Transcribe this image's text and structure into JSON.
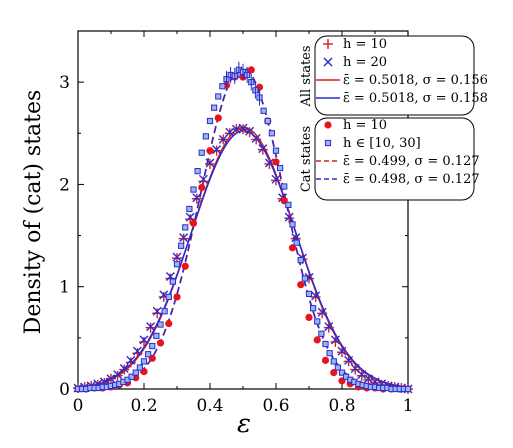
{
  "chart_data": {
    "type": "line",
    "xlabel": "ε",
    "ylabel": "Density of (cat) states",
    "xlim": [
      0,
      1
    ],
    "ylim": [
      0,
      3.5
    ],
    "xticks": [
      "0",
      "0.2",
      "0.4",
      "0.6",
      "0.8",
      "1"
    ],
    "yticks": [
      "0",
      "1",
      "2",
      "3"
    ],
    "legend_groups": [
      "All states",
      "Cat states"
    ],
    "series": [
      {
        "name": "h = 10",
        "group": "All states",
        "style": "plus",
        "color": "#d62020",
        "x": [
          0.0,
          0.02,
          0.04,
          0.06,
          0.08,
          0.1,
          0.12,
          0.14,
          0.16,
          0.18,
          0.2,
          0.22,
          0.24,
          0.26,
          0.28,
          0.3,
          0.32,
          0.34,
          0.36,
          0.38,
          0.4,
          0.42,
          0.44,
          0.46,
          0.48,
          0.5,
          0.52,
          0.54,
          0.56,
          0.58,
          0.6,
          0.62,
          0.64,
          0.66,
          0.68,
          0.7,
          0.72,
          0.74,
          0.76,
          0.78,
          0.8,
          0.82,
          0.84,
          0.86,
          0.88,
          0.9,
          0.92,
          0.94,
          0.96,
          0.98,
          1.0
        ],
        "y": [
          0.01,
          0.02,
          0.03,
          0.04,
          0.06,
          0.1,
          0.13,
          0.19,
          0.26,
          0.35,
          0.46,
          0.6,
          0.74,
          0.9,
          1.08,
          1.28,
          1.47,
          1.66,
          1.86,
          2.03,
          2.2,
          2.33,
          2.44,
          2.5,
          2.54,
          2.54,
          2.51,
          2.44,
          2.34,
          2.2,
          2.04,
          1.86,
          1.67,
          1.47,
          1.27,
          1.08,
          0.9,
          0.74,
          0.6,
          0.46,
          0.36,
          0.27,
          0.19,
          0.13,
          0.09,
          0.06,
          0.04,
          0.03,
          0.02,
          0.01,
          0.0
        ]
      },
      {
        "name": "h = 20",
        "group": "All states",
        "style": "cross",
        "color": "#2a2ad0",
        "x": [
          0.0,
          0.02,
          0.04,
          0.06,
          0.08,
          0.1,
          0.12,
          0.14,
          0.16,
          0.18,
          0.2,
          0.22,
          0.24,
          0.26,
          0.28,
          0.3,
          0.32,
          0.34,
          0.36,
          0.38,
          0.4,
          0.42,
          0.44,
          0.46,
          0.48,
          0.5,
          0.52,
          0.54,
          0.56,
          0.58,
          0.6,
          0.62,
          0.64,
          0.66,
          0.68,
          0.7,
          0.72,
          0.74,
          0.76,
          0.78,
          0.8,
          0.82,
          0.84,
          0.86,
          0.88,
          0.9,
          0.92,
          0.94,
          0.96,
          0.98,
          1.0
        ],
        "y": [
          0.01,
          0.02,
          0.03,
          0.05,
          0.07,
          0.1,
          0.14,
          0.2,
          0.28,
          0.37,
          0.48,
          0.61,
          0.76,
          0.92,
          1.1,
          1.29,
          1.48,
          1.68,
          1.87,
          2.05,
          2.21,
          2.34,
          2.44,
          2.51,
          2.54,
          2.55,
          2.52,
          2.45,
          2.35,
          2.21,
          2.05,
          1.87,
          1.68,
          1.48,
          1.28,
          1.09,
          0.91,
          0.75,
          0.61,
          0.48,
          0.37,
          0.28,
          0.2,
          0.14,
          0.1,
          0.07,
          0.05,
          0.03,
          0.02,
          0.01,
          0.0
        ]
      },
      {
        "name": "ε̄ = 0.5018, σ = 0.156",
        "group": "All states",
        "style": "solid",
        "color": "#d62020",
        "mean": 0.5018,
        "sigma": 0.156
      },
      {
        "name": "ε̄ = 0.5018, σ = 0.158",
        "group": "All states",
        "style": "solid",
        "color": "#2a2ad0",
        "mean": 0.5018,
        "sigma": 0.158
      },
      {
        "name": "h = 10",
        "group": "Cat states",
        "style": "dot",
        "color": "#e8141c",
        "x": [
          0.0,
          0.025,
          0.05,
          0.075,
          0.1,
          0.125,
          0.15,
          0.175,
          0.2,
          0.225,
          0.25,
          0.275,
          0.3,
          0.325,
          0.35,
          0.375,
          0.4,
          0.425,
          0.45,
          0.475,
          0.5,
          0.525,
          0.55,
          0.575,
          0.6,
          0.625,
          0.65,
          0.675,
          0.7,
          0.725,
          0.75,
          0.775,
          0.8,
          0.825,
          0.85,
          0.875,
          0.9,
          0.925,
          0.95,
          0.975,
          1.0
        ],
        "y": [
          0.0,
          0.0,
          0.01,
          0.01,
          0.02,
          0.04,
          0.06,
          0.11,
          0.17,
          0.3,
          0.45,
          0.64,
          0.9,
          1.2,
          1.62,
          1.97,
          2.33,
          2.65,
          2.97,
          3.05,
          3.05,
          3.12,
          2.95,
          2.62,
          2.22,
          1.84,
          1.38,
          1.02,
          0.7,
          0.48,
          0.28,
          0.16,
          0.08,
          0.05,
          0.02,
          0.01,
          0.01,
          0.0,
          0.0,
          0.0,
          0.0
        ]
      },
      {
        "name": "h ∈ [10, 30]",
        "group": "Cat states",
        "style": "square",
        "color": "#2a2ad0",
        "x": [
          0.0,
          0.0125,
          0.025,
          0.0375,
          0.05,
          0.0625,
          0.075,
          0.0875,
          0.1,
          0.1125,
          0.125,
          0.1375,
          0.15,
          0.1625,
          0.175,
          0.1875,
          0.2,
          0.2125,
          0.225,
          0.2375,
          0.25,
          0.2625,
          0.275,
          0.2875,
          0.3,
          0.3125,
          0.325,
          0.3375,
          0.35,
          0.3625,
          0.375,
          0.3875,
          0.4,
          0.4125,
          0.425,
          0.4375,
          0.45,
          0.4625,
          0.475,
          0.4875,
          0.5,
          0.5125,
          0.525,
          0.5375,
          0.55,
          0.5625,
          0.575,
          0.5875,
          0.6,
          0.6125,
          0.625,
          0.6375,
          0.65,
          0.6625,
          0.675,
          0.6875,
          0.7,
          0.7125,
          0.725,
          0.7375,
          0.75,
          0.7625,
          0.775,
          0.7875,
          0.8,
          0.8125,
          0.825,
          0.8375,
          0.85,
          0.8625,
          0.875,
          0.8875,
          0.9,
          0.9125,
          0.925,
          0.9375,
          0.95,
          0.9625,
          0.975,
          0.9875,
          1.0
        ],
        "y": [
          0.0,
          0.0,
          0.0,
          0.01,
          0.01,
          0.01,
          0.02,
          0.02,
          0.03,
          0.04,
          0.05,
          0.07,
          0.09,
          0.12,
          0.16,
          0.21,
          0.27,
          0.34,
          0.42,
          0.52,
          0.63,
          0.76,
          0.9,
          1.05,
          1.22,
          1.4,
          1.58,
          1.76,
          1.95,
          2.13,
          2.31,
          2.47,
          2.62,
          2.75,
          2.86,
          2.96,
          3.03,
          3.07,
          3.06,
          3.12,
          3.1,
          3.07,
          3.0,
          2.92,
          2.85,
          2.72,
          2.62,
          2.5,
          2.33,
          2.16,
          1.98,
          1.8,
          1.61,
          1.43,
          1.26,
          1.08,
          0.93,
          0.79,
          0.66,
          0.54,
          0.44,
          0.35,
          0.27,
          0.21,
          0.16,
          0.12,
          0.09,
          0.07,
          0.05,
          0.04,
          0.03,
          0.02,
          0.02,
          0.01,
          0.01,
          0.01,
          0.0,
          0.0,
          0.0,
          0.0,
          0.0
        ]
      },
      {
        "name": "ε̄ = 0.499, σ = 0.127",
        "group": "Cat states",
        "style": "dashed",
        "color": "#d62020",
        "mean": 0.499,
        "sigma": 0.127
      },
      {
        "name": "ε̄ = 0.498, σ = 0.127",
        "group": "Cat states",
        "style": "dashed",
        "color": "#2a2ad0",
        "mean": 0.498,
        "sigma": 0.127
      }
    ]
  }
}
